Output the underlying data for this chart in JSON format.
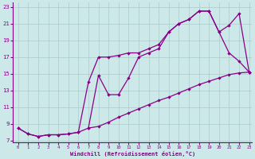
{
  "xlabel": "Windchill (Refroidissement éolien,°C)",
  "bg_color": "#cde8e8",
  "grid_color": "#aacccc",
  "line_color": "#880088",
  "xlim": [
    -0.5,
    23.3
  ],
  "ylim": [
    6.8,
    23.5
  ],
  "yticks": [
    7,
    9,
    11,
    13,
    15,
    17,
    19,
    21,
    23
  ],
  "xticks": [
    0,
    1,
    2,
    3,
    4,
    5,
    6,
    7,
    8,
    9,
    10,
    11,
    12,
    13,
    14,
    15,
    16,
    17,
    18,
    19,
    20,
    21,
    22,
    23
  ],
  "line1_x": [
    0,
    1,
    2,
    3,
    4,
    5,
    6,
    7,
    8,
    9,
    10,
    11,
    12,
    13,
    14,
    15,
    16,
    17,
    18,
    19,
    20,
    21,
    22,
    23
  ],
  "line1_y": [
    8.5,
    7.8,
    7.5,
    7.7,
    7.7,
    7.8,
    8.0,
    8.5,
    8.7,
    9.2,
    9.8,
    10.3,
    10.8,
    11.3,
    11.8,
    12.2,
    12.7,
    13.2,
    13.7,
    14.1,
    14.5,
    14.9,
    15.1,
    15.2
  ],
  "line2_x": [
    0,
    1,
    2,
    3,
    4,
    5,
    6,
    7,
    8,
    9,
    10,
    11,
    12,
    13,
    14,
    15,
    16,
    17,
    18,
    19,
    20,
    21,
    22,
    23
  ],
  "line2_y": [
    8.5,
    7.8,
    7.5,
    7.7,
    7.7,
    7.8,
    8.0,
    14.0,
    17.0,
    17.0,
    17.2,
    17.5,
    17.5,
    18.0,
    18.5,
    20.0,
    21.0,
    21.5,
    22.5,
    22.5,
    20.0,
    17.5,
    16.5,
    15.2
  ],
  "line3_x": [
    7,
    8,
    9,
    10,
    11,
    12,
    13,
    14,
    15,
    16,
    17,
    18,
    19,
    20,
    21,
    22,
    23
  ],
  "line3_y": [
    8.5,
    14.8,
    12.5,
    12.5,
    14.5,
    17.0,
    17.5,
    18.0,
    20.0,
    21.0,
    21.5,
    22.5,
    22.5,
    20.0,
    20.8,
    22.2,
    15.2
  ]
}
